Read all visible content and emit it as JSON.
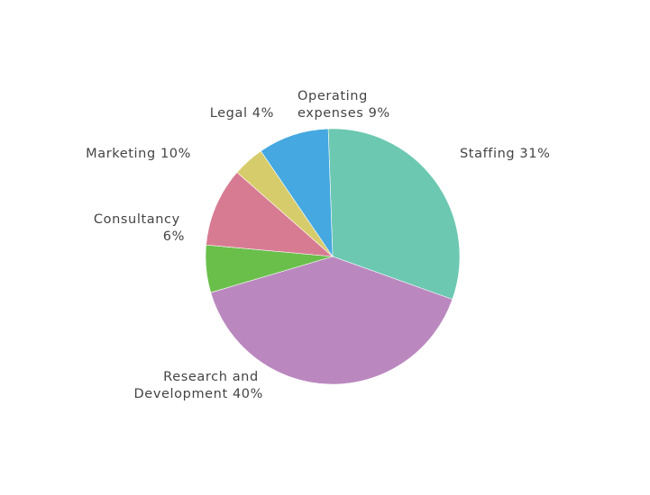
{
  "chart_data": {
    "type": "pie",
    "title": "",
    "slices": [
      {
        "name": "Staffing",
        "value": 31,
        "pct_label": "31%",
        "color": "#6dc8b1"
      },
      {
        "name": "Research and Development",
        "value": 40,
        "pct_label": "40%",
        "color": "#ba88bf"
      },
      {
        "name": "Consultancy",
        "value": 6,
        "pct_label": "6%",
        "color": "#6abf4b"
      },
      {
        "name": "Marketing",
        "value": 10,
        "pct_label": "10%",
        "color": "#d77b93"
      },
      {
        "name": "Legal",
        "value": 4,
        "pct_label": "4%",
        "color": "#d6cc6b"
      },
      {
        "name": "Operating expenses",
        "value": 9,
        "pct_label": "9%",
        "color": "#45a8e0"
      }
    ],
    "labels": {
      "staffing": [
        "Staffing 31%"
      ],
      "research": [
        "Research and",
        "Development 40%"
      ],
      "consultancy": [
        "Consultancy",
        "6%"
      ],
      "marketing": [
        "Marketing 10%"
      ],
      "legal": [
        "Legal 4%"
      ],
      "operating": [
        "Operating",
        "expenses 9%"
      ]
    }
  }
}
